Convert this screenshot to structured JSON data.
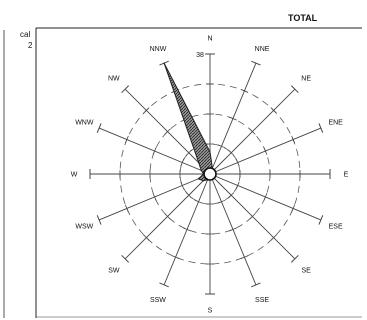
{
  "header": {
    "title": "TOTAL"
  },
  "side_label": {
    "line1": "cal",
    "line2": "2"
  },
  "chart_data": {
    "type": "radar",
    "title": "TOTAL",
    "directions": [
      "N",
      "NNE",
      "NE",
      "ENE",
      "E",
      "ESE",
      "SE",
      "SSE",
      "S",
      "SSW",
      "SW",
      "WSW",
      "W",
      "WNW",
      "NW",
      "NNW"
    ],
    "axis_max_label": "38",
    "rmax": 38,
    "ring_values": [
      9.5,
      19,
      28.5
    ],
    "series": [
      {
        "values": [
          7,
          2,
          2,
          1.5,
          1.5,
          1.5,
          1.5,
          1.5,
          1.5,
          2,
          3,
          4,
          2,
          3,
          5,
          38
        ]
      }
    ],
    "colors": {
      "fill": "#6a6a6a",
      "stroke": "#222222",
      "spoke": "#444444"
    }
  }
}
